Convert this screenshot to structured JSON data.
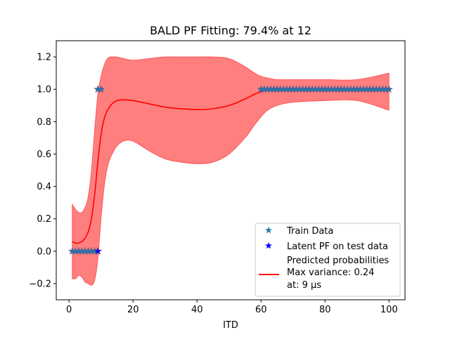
{
  "chart_data": {
    "type": "line",
    "title": "BALD PF Fitting: 79.4% at 12",
    "xlabel": "ITD",
    "ylabel": "",
    "xlim": [
      -4,
      105
    ],
    "ylim": [
      -0.3,
      1.3
    ],
    "x_ticks": [
      0,
      20,
      40,
      60,
      80,
      100
    ],
    "y_ticks": [
      -0.2,
      0.0,
      0.2,
      0.4,
      0.6,
      0.8,
      1.0,
      1.2
    ],
    "x_tick_labels": [
      "0",
      "20",
      "40",
      "60",
      "80",
      "100"
    ],
    "y_tick_labels": [
      "−0.2",
      "0.0",
      "0.2",
      "0.4",
      "0.6",
      "0.8",
      "1.0",
      "1.2"
    ],
    "grid": false,
    "legend_position": "lower-right",
    "legend": {
      "train": "Train Data",
      "latent": "Latent PF on test data",
      "pred_line1": "Predicted probabilities",
      "pred_line2": "Max variance: 0.24",
      "pred_line3": "at: 9 μs"
    },
    "colors": {
      "train": "#1f77b4",
      "latent": "#0000ff",
      "line": "#ff0000",
      "band": "#ff0000"
    },
    "series": [
      {
        "name": "Predicted probabilities",
        "kind": "line",
        "x": [
          1,
          2,
          3,
          4,
          5,
          6,
          7,
          8,
          9,
          10,
          11,
          12,
          13,
          14,
          15,
          17,
          20,
          25,
          30,
          35,
          40,
          45,
          50,
          55,
          58,
          60,
          62,
          65,
          70,
          80,
          90,
          100
        ],
        "y": [
          0.06,
          0.05,
          0.05,
          0.06,
          0.08,
          0.12,
          0.2,
          0.35,
          0.55,
          0.72,
          0.82,
          0.87,
          0.9,
          0.92,
          0.93,
          0.935,
          0.93,
          0.91,
          0.89,
          0.88,
          0.875,
          0.88,
          0.9,
          0.94,
          0.97,
          0.985,
          0.995,
          1.0,
          1.0,
          1.0,
          1.0,
          1.0
        ]
      },
      {
        "name": "",
        "kind": "band",
        "x": [
          1,
          2,
          3,
          4,
          5,
          6,
          7,
          8,
          9,
          10,
          11,
          12,
          13,
          14,
          15,
          17,
          20,
          25,
          30,
          35,
          40,
          45,
          50,
          55,
          58,
          60,
          62,
          65,
          70,
          80,
          90,
          100
        ],
        "lower": [
          -0.17,
          -0.17,
          -0.15,
          -0.16,
          -0.19,
          -0.2,
          -0.21,
          -0.18,
          -0.05,
          0.2,
          0.4,
          0.52,
          0.58,
          0.62,
          0.65,
          0.68,
          0.68,
          0.62,
          0.57,
          0.55,
          0.54,
          0.55,
          0.6,
          0.7,
          0.78,
          0.83,
          0.87,
          0.9,
          0.92,
          0.93,
          0.93,
          0.87
        ],
        "upper": [
          0.29,
          0.26,
          0.24,
          0.24,
          0.27,
          0.34,
          0.5,
          0.75,
          0.97,
          1.08,
          1.15,
          1.19,
          1.2,
          1.2,
          1.2,
          1.19,
          1.18,
          1.19,
          1.2,
          1.2,
          1.2,
          1.2,
          1.19,
          1.14,
          1.1,
          1.08,
          1.07,
          1.06,
          1.06,
          1.06,
          1.06,
          1.1
        ]
      },
      {
        "name": "Train Data",
        "kind": "scatter",
        "x": [
          1,
          2,
          3,
          4,
          5,
          6,
          7,
          8,
          9,
          9,
          10,
          60,
          61,
          62,
          63,
          64,
          65,
          66,
          67,
          68,
          69,
          70,
          71,
          72,
          73,
          74,
          75,
          76,
          77,
          78,
          79,
          80,
          81,
          82,
          83,
          84,
          85,
          86,
          87,
          88,
          89,
          90,
          91,
          92,
          93,
          94,
          95,
          96,
          97,
          98,
          99,
          100
        ],
        "y": [
          0,
          0,
          0,
          0,
          0,
          0,
          0,
          0,
          0,
          1,
          1,
          1,
          1,
          1,
          1,
          1,
          1,
          1,
          1,
          1,
          1,
          1,
          1,
          1,
          1,
          1,
          1,
          1,
          1,
          1,
          1,
          1,
          1,
          1,
          1,
          1,
          1,
          1,
          1,
          1,
          1,
          1,
          1,
          1,
          1,
          1,
          1,
          1,
          1,
          1,
          1,
          1
        ]
      },
      {
        "name": "Latent PF on test data",
        "kind": "scatter",
        "x": [
          9
        ],
        "y": [
          0
        ]
      }
    ]
  }
}
